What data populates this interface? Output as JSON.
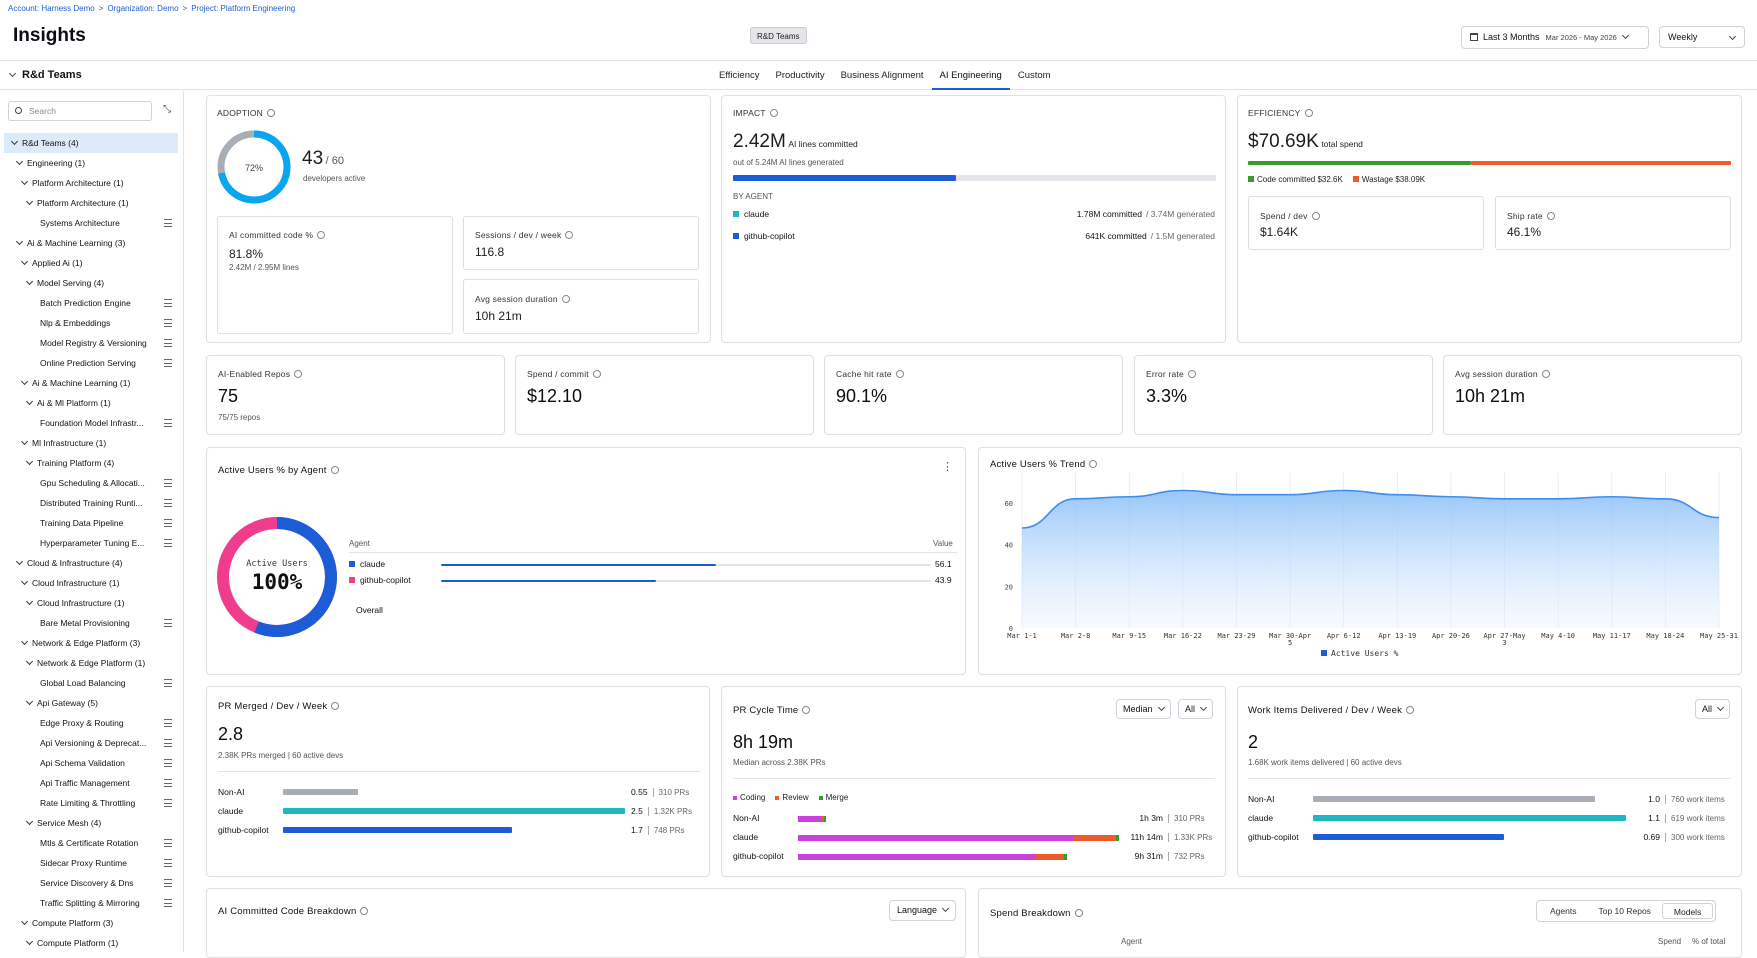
{
  "breadcrumb": {
    "account": "Account: Harness Demo",
    "org": "Organization: Demo",
    "project": "Project: Platform Engineering"
  },
  "page_title": "Insights",
  "team_chip": "R&D Teams",
  "date_range": {
    "label": "Last 3 Months",
    "range": "Mar 2026 - May 2026"
  },
  "granularity": "Weekly",
  "team_header": "R&d Teams",
  "tabs": [
    "Efficiency",
    "Productivity",
    "Business Alignment",
    "AI Engineering",
    "Custom"
  ],
  "active_tab": "AI Engineering",
  "search_placeholder": "Search",
  "tree": [
    {
      "label": "R&d Teams (4)",
      "level": 0,
      "expand": true,
      "selected": true
    },
    {
      "label": "Engineering (1)",
      "level": 1,
      "expand": true
    },
    {
      "label": "Platform Architecture (1)",
      "level": 2,
      "expand": true
    },
    {
      "label": "Platform Architecture (1)",
      "level": 3,
      "expand": true
    },
    {
      "label": "Systems Architecture",
      "level": 4,
      "leaf": true
    },
    {
      "label": "Ai & Machine Learning (3)",
      "level": 1,
      "expand": true
    },
    {
      "label": "Applied Ai (1)",
      "level": 2,
      "expand": true
    },
    {
      "label": "Model Serving (4)",
      "level": 3,
      "expand": true
    },
    {
      "label": "Batch Prediction Engine",
      "level": 4,
      "leaf": true
    },
    {
      "label": "Nlp & Embeddings",
      "level": 4,
      "leaf": true
    },
    {
      "label": "Model Registry & Versioning",
      "level": 4,
      "leaf": true
    },
    {
      "label": "Online Prediction Serving",
      "level": 4,
      "leaf": true
    },
    {
      "label": "Ai & Machine Learning (1)",
      "level": 2,
      "expand": true
    },
    {
      "label": "Ai & Ml Platform (1)",
      "level": 3,
      "expand": true
    },
    {
      "label": "Foundation Model Infrastr...",
      "level": 4,
      "leaf": true
    },
    {
      "label": "Ml Infrastructure (1)",
      "level": 2,
      "expand": true
    },
    {
      "label": "Training Platform (4)",
      "level": 3,
      "expand": true
    },
    {
      "label": "Gpu Scheduling & Allocati...",
      "level": 4,
      "leaf": true
    },
    {
      "label": "Distributed Training Runti...",
      "level": 4,
      "leaf": true
    },
    {
      "label": "Training Data Pipeline",
      "level": 4,
      "leaf": true
    },
    {
      "label": "Hyperparameter Tuning E...",
      "level": 4,
      "leaf": true
    },
    {
      "label": "Cloud & Infrastructure (4)",
      "level": 1,
      "expand": true
    },
    {
      "label": "Cloud Infrastructure (1)",
      "level": 2,
      "expand": true
    },
    {
      "label": "Cloud Infrastructure (1)",
      "level": 3,
      "expand": true
    },
    {
      "label": "Bare Metal Provisioning",
      "level": 4,
      "leaf": true
    },
    {
      "label": "Network & Edge Platform (3)",
      "level": 2,
      "expand": true
    },
    {
      "label": "Network & Edge Platform (1)",
      "level": 3,
      "expand": true
    },
    {
      "label": "Global Load Balancing",
      "level": 4,
      "leaf": true
    },
    {
      "label": "Api Gateway (5)",
      "level": 3,
      "expand": true
    },
    {
      "label": "Edge Proxy & Routing",
      "level": 4,
      "leaf": true
    },
    {
      "label": "Api Versioning & Deprecat...",
      "level": 4,
      "leaf": true
    },
    {
      "label": "Api Schema Validation",
      "level": 4,
      "leaf": true
    },
    {
      "label": "Api Traffic Management",
      "level": 4,
      "leaf": true
    },
    {
      "label": "Rate Limiting & Throttling",
      "level": 4,
      "leaf": true
    },
    {
      "label": "Service Mesh (4)",
      "level": 3,
      "expand": true
    },
    {
      "label": "Mtls & Certificate Rotation",
      "level": 4,
      "leaf": true
    },
    {
      "label": "Sidecar Proxy Runtime",
      "level": 4,
      "leaf": true
    },
    {
      "label": "Service Discovery & Dns",
      "level": 4,
      "leaf": true
    },
    {
      "label": "Traffic Splitting & Mirroring",
      "level": 4,
      "leaf": true
    },
    {
      "label": "Compute Platform (3)",
      "level": 2,
      "expand": true
    },
    {
      "label": "Compute Platform (1)",
      "level": 3,
      "expand": true
    }
  ],
  "adoption": {
    "title": "ADOPTION",
    "donut_pct": 72,
    "donut_label": "72%",
    "active": "43",
    "total": "/ 60",
    "sub": "developers active",
    "ai_code": {
      "title": "AI committed code %",
      "value": "81.8%",
      "sub": "2.42M / 2.95M lines"
    },
    "sessions": {
      "title": "Sessions / dev / week",
      "value": "116.8"
    },
    "avg_session": {
      "title": "Avg session duration",
      "value": "10h 21m"
    }
  },
  "impact": {
    "title": "IMPACT",
    "value": "2.42M",
    "value_label": "AI lines committed",
    "sub": "out of 5.24M AI lines generated",
    "progress": 0.462,
    "by_agent": "BY AGENT",
    "agents": [
      {
        "name": "claude",
        "committed": "1.78M committed",
        "generated": "/ 3.74M generated",
        "color": "#1eb8c1"
      },
      {
        "name": "github-copilot",
        "committed": "641K committed",
        "generated": "/ 1.5M generated",
        "color": "#1c5cd6"
      }
    ]
  },
  "efficiency": {
    "title": "EFFICIENCY",
    "value": "$70.69K",
    "value_label": "total spend",
    "committed_frac": 0.462,
    "legend": [
      {
        "label": "Code committed $32.6K",
        "color": "#3a9a2c"
      },
      {
        "label": "Wastage $38.09K",
        "color": "#f05a2a"
      }
    ],
    "spend_dev": {
      "title": "Spend / dev",
      "value": "$1.64K"
    },
    "ship_rate": {
      "title": "Ship rate",
      "value": "46.1%"
    }
  },
  "kpis": [
    {
      "title": "AI-Enabled Repos",
      "value": "75",
      "sub": "75/75 repos"
    },
    {
      "title": "Spend / commit",
      "value": "$12.10",
      "sub": ""
    },
    {
      "title": "Cache hit rate",
      "value": "90.1%",
      "sub": ""
    },
    {
      "title": "Error rate",
      "value": "3.3%",
      "sub": ""
    },
    {
      "title": "Avg session duration",
      "value": "10h 21m",
      "sub": ""
    }
  ],
  "active_users": {
    "title": "Active Users % by Agent",
    "center_label": "Active Users",
    "center_value": "100%",
    "col_agent": "Agent",
    "col_value": "Value",
    "overall": "Overall",
    "rows": [
      {
        "name": "claude",
        "value": "56.1",
        "color": "#1c5cd6"
      },
      {
        "name": "github-copilot",
        "value": "43.9",
        "color": "#f03c8c"
      }
    ]
  },
  "trend": {
    "title": "Active Users % Trend",
    "legend": "Active Users %",
    "chart_data": {
      "type": "area",
      "x": [
        "Mar 1-1",
        "Mar 2-8",
        "Mar 9-15",
        "Mar 16-22",
        "Mar 23-29",
        "Mar 30-Apr 5",
        "Apr 6-12",
        "Apr 13-19",
        "Apr 20-26",
        "Apr 27-May 3",
        "May 4-10",
        "May 11-17",
        "May 18-24",
        "May 25-31"
      ],
      "series": [
        {
          "name": "Active Users %",
          "values": [
            48,
            62,
            63,
            66,
            64,
            64,
            66,
            64,
            63,
            62,
            62,
            63,
            62,
            53
          ]
        }
      ],
      "yticks": [
        0,
        20,
        40,
        60
      ],
      "ylim": [
        0,
        72
      ]
    }
  },
  "pr_merged": {
    "title": "PR Merged / Dev / Week",
    "value": "2.8",
    "sub": "2.38K PRs merged | 60 active devs",
    "rows": [
      {
        "name": "Non-AI",
        "value": "0.55",
        "count": "310 PRs",
        "frac": 0.22,
        "color": "#a9adb5"
      },
      {
        "name": "claude",
        "value": "2.5",
        "count": "1.32K PRs",
        "frac": 1.0,
        "color": "#1eb8c1"
      },
      {
        "name": "github-copilot",
        "value": "1.7",
        "count": "748 PRs",
        "frac": 0.67,
        "color": "#1c5cd6"
      }
    ]
  },
  "pr_cycle": {
    "title": "PR Cycle Time",
    "select1": "Median",
    "select2": "All",
    "value": "8h 19m",
    "sub": "Median across 2.38K PRs",
    "legend": [
      {
        "label": "Coding",
        "color": "#cc3fe0"
      },
      {
        "label": "Review",
        "color": "#f05a2a"
      },
      {
        "label": "Merge",
        "color": "#3a9a2c"
      }
    ],
    "rows": [
      {
        "name": "Non-AI",
        "value": "1h 3m",
        "count": "310 PRs",
        "coding": 0.07,
        "review": 0.01,
        "merge": 0.005
      },
      {
        "name": "claude",
        "value": "11h 14m",
        "count": "1.33K PRs",
        "coding": 0.85,
        "review": 0.13,
        "merge": 0.01
      },
      {
        "name": "github-copilot",
        "value": "9h 31m",
        "count": "732 PRs",
        "coding": 0.73,
        "review": 0.09,
        "merge": 0.01
      }
    ]
  },
  "work_items": {
    "title": "Work Items Delivered / Dev / Week",
    "select": "All",
    "value": "2",
    "sub": "1.68K work items delivered | 60 active devs",
    "rows": [
      {
        "name": "Non-AI",
        "value": "1.0",
        "count": "760 work items",
        "frac": 0.9,
        "color": "#a9adb5"
      },
      {
        "name": "claude",
        "value": "1.1",
        "count": "619 work items",
        "frac": 1.0,
        "color": "#1eb8c1"
      },
      {
        "name": "github-copilot",
        "value": "0.69",
        "count": "300 work items",
        "frac": 0.61,
        "color": "#1c5cd6"
      }
    ]
  },
  "code_breakdown": {
    "title": "AI Committed Code Breakdown",
    "select": "Language"
  },
  "spend_breakdown": {
    "title": "Spend Breakdown",
    "tabs": [
      "Agents",
      "Top 10 Repos",
      "Models"
    ],
    "active_tab": "Models",
    "col_agent": "Agent",
    "col_spend": "Spend",
    "col_pct": "% of total"
  }
}
